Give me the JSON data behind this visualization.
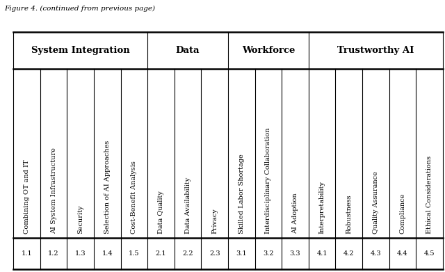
{
  "title_prefix": "Figure 4. (continued from previous page)",
  "group_headers": [
    "System Integration",
    "Data",
    "Workforce",
    "Trustworthy AI"
  ],
  "columns": [
    "Combining OT and IT",
    "AI System Infrastructure",
    "Security",
    "Selection of AI Approaches",
    "Cost-Benefit Analysis",
    "Data Quality",
    "Data Availability",
    "Privacy",
    "Skilled Labor Shortage",
    "Interdisciplinary Collaboration",
    "AI Adoption",
    "Interpretability",
    "Robustness",
    "Quality Assurance",
    "Compliance",
    "Ethical Considerations"
  ],
  "bottom_row": [
    "1.1",
    "1.2",
    "1.3",
    "1.4",
    "1.5",
    "2.1",
    "2.2",
    "2.3",
    "3.1",
    "3.2",
    "3.3",
    "4.1",
    "4.2",
    "4.3",
    "4.4",
    "4.5"
  ],
  "group_spans": [
    5,
    3,
    3,
    5
  ],
  "bg_color": "#ffffff",
  "line_color": "#000000",
  "text_color": "#000000",
  "font_size": 7.0,
  "header_font_size": 9.5
}
